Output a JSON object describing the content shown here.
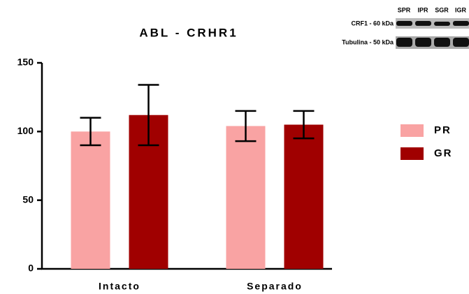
{
  "chart_data": {
    "type": "bar",
    "title": "ABL - CRHR1",
    "categories": [
      "Intacto",
      "Separado"
    ],
    "series": [
      {
        "name": "PR",
        "color": "#f9a3a3",
        "values": [
          100,
          104
        ],
        "errors": [
          10,
          11
        ]
      },
      {
        "name": "GR",
        "color": "#a00000",
        "values": [
          112,
          105
        ],
        "errors": [
          22,
          10
        ]
      }
    ],
    "ylim": [
      0,
      150
    ],
    "yticks": [
      0,
      50,
      100,
      150
    ],
    "inset": {
      "lanes": [
        "SPR",
        "IPR",
        "SGR",
        "IGR"
      ],
      "rows": [
        "CRF1 - 60 kDa",
        "Tubulina - 50 kDa"
      ]
    }
  }
}
